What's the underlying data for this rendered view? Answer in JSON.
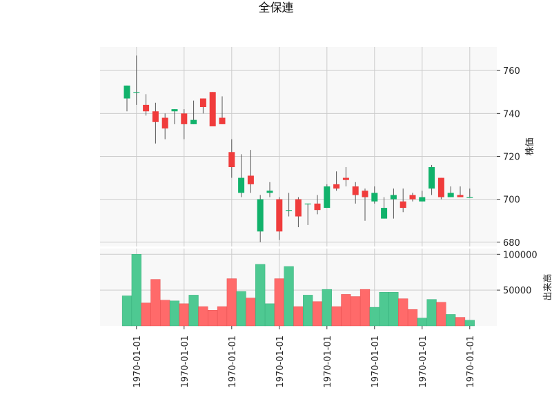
{
  "chart_data": {
    "type": "candlestick",
    "title": "全保連",
    "price_ylabel": "株価",
    "volume_ylabel": "出来高",
    "price_ylim": [
      678,
      771
    ],
    "price_yticks": [
      680,
      700,
      720,
      740,
      760
    ],
    "volume_ylim": [
      0,
      108000
    ],
    "volume_yticks": [
      50000,
      100000
    ],
    "x_tick_indices": [
      1,
      6,
      11,
      16,
      21,
      26,
      31,
      36
    ],
    "x_tick_labels": [
      "1970-01-01",
      "1970-01-01",
      "1970-01-01",
      "1970-01-01",
      "1970-01-01",
      "1970-01-01",
      "1970-01-01",
      "1970-01-01"
    ],
    "candles": [
      {
        "open": 747,
        "high": 753,
        "low": 741,
        "close": 753,
        "volume": 42000
      },
      {
        "open": 750,
        "high": 767,
        "low": 744,
        "close": 750,
        "volume": 100000
      },
      {
        "open": 744,
        "high": 749,
        "low": 739,
        "close": 741,
        "volume": 32000
      },
      {
        "open": 741,
        "high": 745,
        "low": 726,
        "close": 736,
        "volume": 65000
      },
      {
        "open": 738,
        "high": 740,
        "low": 728,
        "close": 733,
        "volume": 36000
      },
      {
        "open": 741,
        "high": 742,
        "low": 735,
        "close": 742,
        "volume": 35000
      },
      {
        "open": 740,
        "high": 742,
        "low": 728,
        "close": 735,
        "volume": 31000
      },
      {
        "open": 735,
        "high": 746,
        "low": 735,
        "close": 737,
        "volume": 43000
      },
      {
        "open": 747,
        "high": 747,
        "low": 740,
        "close": 743,
        "volume": 27000
      },
      {
        "open": 750,
        "high": 750,
        "low": 734,
        "close": 734,
        "volume": 22000
      },
      {
        "open": 738,
        "high": 748,
        "low": 735,
        "close": 735,
        "volume": 27000
      },
      {
        "open": 722,
        "high": 728,
        "low": 710,
        "close": 715,
        "volume": 66000
      },
      {
        "open": 703,
        "high": 721,
        "low": 701,
        "close": 710,
        "volume": 48000
      },
      {
        "open": 711,
        "high": 723,
        "low": 703,
        "close": 707,
        "volume": 39000
      },
      {
        "open": 685,
        "high": 702,
        "low": 680,
        "close": 700,
        "volume": 86000
      },
      {
        "open": 703,
        "high": 708,
        "low": 701,
        "close": 704,
        "volume": 31000
      },
      {
        "open": 700,
        "high": 701,
        "low": 681,
        "close": 685,
        "volume": 66000
      },
      {
        "open": 695,
        "high": 703,
        "low": 692,
        "close": 695,
        "volume": 83000
      },
      {
        "open": 700,
        "high": 701,
        "low": 687,
        "close": 692,
        "volume": 27000
      },
      {
        "open": 698,
        "high": 698,
        "low": 688,
        "close": 698,
        "volume": 43000
      },
      {
        "open": 698,
        "high": 702,
        "low": 693,
        "close": 695,
        "volume": 34000
      },
      {
        "open": 696,
        "high": 707,
        "low": 696,
        "close": 706,
        "volume": 51000
      },
      {
        "open": 707,
        "high": 713,
        "low": 704,
        "close": 705,
        "volume": 27000
      },
      {
        "open": 710,
        "high": 715,
        "low": 706,
        "close": 709,
        "volume": 44000
      },
      {
        "open": 706,
        "high": 708,
        "low": 698,
        "close": 702,
        "volume": 41000
      },
      {
        "open": 704,
        "high": 705,
        "low": 690,
        "close": 701,
        "volume": 51000
      },
      {
        "open": 699,
        "high": 706,
        "low": 698,
        "close": 703,
        "volume": 26000
      },
      {
        "open": 691,
        "high": 701,
        "low": 691,
        "close": 696,
        "volume": 47000
      },
      {
        "open": 700,
        "high": 705,
        "low": 691,
        "close": 702,
        "volume": 47000
      },
      {
        "open": 699,
        "high": 705,
        "low": 694,
        "close": 696,
        "volume": 38000
      },
      {
        "open": 702,
        "high": 703,
        "low": 699,
        "close": 700,
        "volume": 23000
      },
      {
        "open": 699,
        "high": 704,
        "low": 699,
        "close": 701,
        "volume": 11000
      },
      {
        "open": 705,
        "high": 716,
        "low": 702,
        "close": 715,
        "volume": 37000
      },
      {
        "open": 710,
        "high": 710,
        "low": 700,
        "close": 701,
        "volume": 33000
      },
      {
        "open": 701,
        "high": 706,
        "low": 701,
        "close": 703,
        "volume": 16000
      },
      {
        "open": 702,
        "high": 706,
        "low": 701,
        "close": 701,
        "volume": 12000
      },
      {
        "open": 701,
        "high": 705,
        "low": 701,
        "close": 701,
        "volume": 8000
      }
    ]
  },
  "colors": {
    "up": "#11b26b",
    "down": "#f03c3c",
    "up_volume": "#4ec992",
    "down_volume": "#ff6a6a",
    "wick": "#555555",
    "panel_bg": "#f8f8f8",
    "grid": "#cccccc"
  }
}
